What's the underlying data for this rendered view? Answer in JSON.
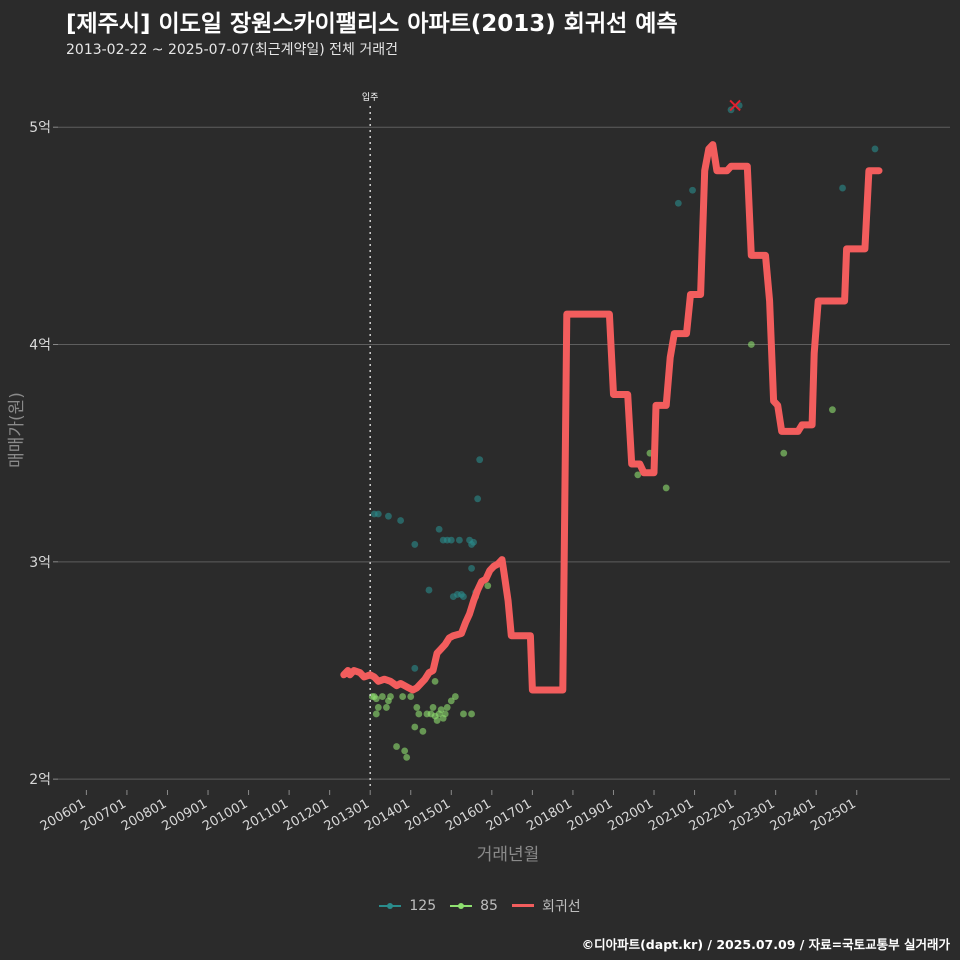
{
  "title": "[제주시] 이도일 장원스카이팰리스 아파트(2013) 회귀선 예측",
  "subtitle": "2013-02-22 ~ 2025-07-07(최근계약일) 전체 거래건",
  "caption": "©디아파트(dapt.kr) / 2025.07.09 / 자료=국토교통부 실거래가",
  "legend": {
    "s125": "125",
    "s85": "85",
    "reg": "회귀선"
  },
  "colors": {
    "background": "#2b2b2b",
    "grid": "#5e5e5e",
    "s125": "#2a8c8c",
    "s85": "#8fe070",
    "regression": "#f25d5d",
    "cancelled": "#e0212f"
  },
  "chart_data": {
    "type": "scatter",
    "title": "[제주시] 이도일 장원스카이팰리스 아파트(2013) 회귀선 예측",
    "xlabel": "거래년월",
    "ylabel": "매매가(원)",
    "xlim": [
      2005.3,
      2027.3
    ],
    "ylim": [
      1.95,
      5.3
    ],
    "x_ticks": [
      2006,
      2007,
      2008,
      2009,
      2010,
      2011,
      2012,
      2013,
      2014,
      2015,
      2016,
      2017,
      2018,
      2019,
      2020,
      2021,
      2022,
      2023,
      2024,
      2025
    ],
    "x_tick_labels": [
      "200601",
      "200701",
      "200801",
      "200901",
      "201001",
      "201101",
      "201201",
      "201301",
      "201401",
      "201501",
      "201601",
      "201701",
      "201801",
      "201901",
      "202001",
      "202101",
      "202201",
      "202301",
      "202401",
      "202501"
    ],
    "y_ticks": [
      2,
      3,
      4,
      5
    ],
    "y_tick_labels": [
      "2억",
      "3억",
      "4억",
      "5억"
    ],
    "annotation": {
      "x": 2013.0,
      "text": "입주"
    },
    "cancelled_marker": {
      "x": 2022.0,
      "y": 5.1
    },
    "series": [
      {
        "name": "125",
        "points": [
          [
            2013.1,
            3.22
          ],
          [
            2013.2,
            3.22
          ],
          [
            2013.45,
            3.21
          ],
          [
            2013.75,
            3.19
          ],
          [
            2014.1,
            3.08
          ],
          [
            2014.1,
            2.51
          ],
          [
            2014.45,
            2.87
          ],
          [
            2014.7,
            3.15
          ],
          [
            2014.8,
            3.1
          ],
          [
            2014.9,
            3.1
          ],
          [
            2015.0,
            3.1
          ],
          [
            2015.05,
            2.84
          ],
          [
            2015.15,
            2.85
          ],
          [
            2015.2,
            3.1
          ],
          [
            2015.25,
            2.85
          ],
          [
            2015.3,
            2.84
          ],
          [
            2015.45,
            3.1
          ],
          [
            2015.5,
            3.08
          ],
          [
            2015.55,
            3.09
          ],
          [
            2015.5,
            2.97
          ],
          [
            2015.65,
            3.29
          ],
          [
            2015.7,
            3.47
          ],
          [
            2015.6,
            2.86
          ],
          [
            2020.6,
            4.65
          ],
          [
            2020.95,
            4.71
          ],
          [
            2021.9,
            5.08
          ],
          [
            2022.1,
            5.1
          ],
          [
            2024.65,
            4.72
          ],
          [
            2025.45,
            4.9
          ]
        ]
      },
      {
        "name": "85",
        "points": [
          [
            2013.05,
            2.38
          ],
          [
            2013.1,
            2.38
          ],
          [
            2013.15,
            2.37
          ],
          [
            2013.2,
            2.33
          ],
          [
            2013.15,
            2.3
          ],
          [
            2013.3,
            2.38
          ],
          [
            2013.4,
            2.33
          ],
          [
            2013.5,
            2.38
          ],
          [
            2013.45,
            2.36
          ],
          [
            2013.65,
            2.15
          ],
          [
            2013.8,
            2.38
          ],
          [
            2013.85,
            2.13
          ],
          [
            2013.9,
            2.1
          ],
          [
            2014.0,
            2.38
          ],
          [
            2014.1,
            2.24
          ],
          [
            2014.15,
            2.33
          ],
          [
            2014.2,
            2.3
          ],
          [
            2014.3,
            2.22
          ],
          [
            2014.4,
            2.3
          ],
          [
            2014.5,
            2.3
          ],
          [
            2014.55,
            2.33
          ],
          [
            2014.6,
            2.29
          ],
          [
            2014.65,
            2.27
          ],
          [
            2014.7,
            2.3
          ],
          [
            2014.75,
            2.32
          ],
          [
            2014.8,
            2.28
          ],
          [
            2014.85,
            2.3
          ],
          [
            2014.9,
            2.33
          ],
          [
            2015.0,
            2.36
          ],
          [
            2015.1,
            2.38
          ],
          [
            2015.3,
            2.3
          ],
          [
            2015.5,
            2.3
          ],
          [
            2014.6,
            2.45
          ],
          [
            2015.6,
            2.84
          ],
          [
            2015.9,
            2.89
          ],
          [
            2019.6,
            3.4
          ],
          [
            2019.9,
            3.5
          ],
          [
            2020.3,
            3.34
          ],
          [
            2022.4,
            4.0
          ],
          [
            2023.2,
            3.5
          ],
          [
            2024.4,
            3.7
          ]
        ]
      },
      {
        "name": "회귀선",
        "points": [
          [
            2012.35,
            2.48
          ],
          [
            2012.45,
            2.5
          ],
          [
            2012.5,
            2.48
          ],
          [
            2012.6,
            2.5
          ],
          [
            2012.75,
            2.49
          ],
          [
            2012.85,
            2.47
          ],
          [
            2013.0,
            2.48
          ],
          [
            2013.1,
            2.47
          ],
          [
            2013.2,
            2.45
          ],
          [
            2013.35,
            2.46
          ],
          [
            2013.5,
            2.45
          ],
          [
            2013.65,
            2.43
          ],
          [
            2013.75,
            2.44
          ],
          [
            2013.85,
            2.43
          ],
          [
            2013.95,
            2.42
          ],
          [
            2014.05,
            2.41
          ],
          [
            2014.15,
            2.42
          ],
          [
            2014.25,
            2.44
          ],
          [
            2014.35,
            2.46
          ],
          [
            2014.45,
            2.49
          ],
          [
            2014.55,
            2.5
          ],
          [
            2014.65,
            2.58
          ],
          [
            2014.75,
            2.6
          ],
          [
            2014.85,
            2.62
          ],
          [
            2014.95,
            2.65
          ],
          [
            2015.05,
            2.66
          ],
          [
            2015.25,
            2.67
          ],
          [
            2015.35,
            2.72
          ],
          [
            2015.45,
            2.76
          ],
          [
            2015.55,
            2.82
          ],
          [
            2015.65,
            2.87
          ],
          [
            2015.75,
            2.91
          ],
          [
            2015.85,
            2.92
          ],
          [
            2015.95,
            2.96
          ],
          [
            2016.05,
            2.98
          ],
          [
            2016.15,
            2.99
          ],
          [
            2016.25,
            3.01
          ],
          [
            2016.3,
            2.95
          ],
          [
            2016.4,
            2.82
          ],
          [
            2016.48,
            2.66
          ],
          [
            2016.7,
            2.66
          ],
          [
            2016.95,
            2.66
          ],
          [
            2017.0,
            2.41
          ],
          [
            2017.5,
            2.41
          ],
          [
            2017.75,
            2.41
          ],
          [
            2017.85,
            4.14
          ],
          [
            2018.9,
            4.14
          ],
          [
            2019.0,
            3.77
          ],
          [
            2019.35,
            3.77
          ],
          [
            2019.45,
            3.45
          ],
          [
            2019.65,
            3.45
          ],
          [
            2019.75,
            3.41
          ],
          [
            2020.0,
            3.41
          ],
          [
            2020.05,
            3.72
          ],
          [
            2020.3,
            3.72
          ],
          [
            2020.4,
            3.94
          ],
          [
            2020.5,
            4.05
          ],
          [
            2020.8,
            4.05
          ],
          [
            2020.9,
            4.23
          ],
          [
            2021.15,
            4.23
          ],
          [
            2021.25,
            4.8
          ],
          [
            2021.35,
            4.9
          ],
          [
            2021.45,
            4.92
          ],
          [
            2021.55,
            4.8
          ],
          [
            2021.8,
            4.8
          ],
          [
            2021.9,
            4.82
          ],
          [
            2022.3,
            4.82
          ],
          [
            2022.4,
            4.41
          ],
          [
            2022.75,
            4.41
          ],
          [
            2022.85,
            4.2
          ],
          [
            2022.95,
            3.74
          ],
          [
            2023.05,
            3.72
          ],
          [
            2023.15,
            3.6
          ],
          [
            2023.55,
            3.6
          ],
          [
            2023.65,
            3.63
          ],
          [
            2023.9,
            3.63
          ],
          [
            2023.95,
            3.96
          ],
          [
            2024.05,
            4.2
          ],
          [
            2024.7,
            4.2
          ],
          [
            2024.75,
            4.44
          ],
          [
            2025.2,
            4.44
          ],
          [
            2025.3,
            4.8
          ],
          [
            2025.55,
            4.8
          ]
        ]
      }
    ]
  }
}
